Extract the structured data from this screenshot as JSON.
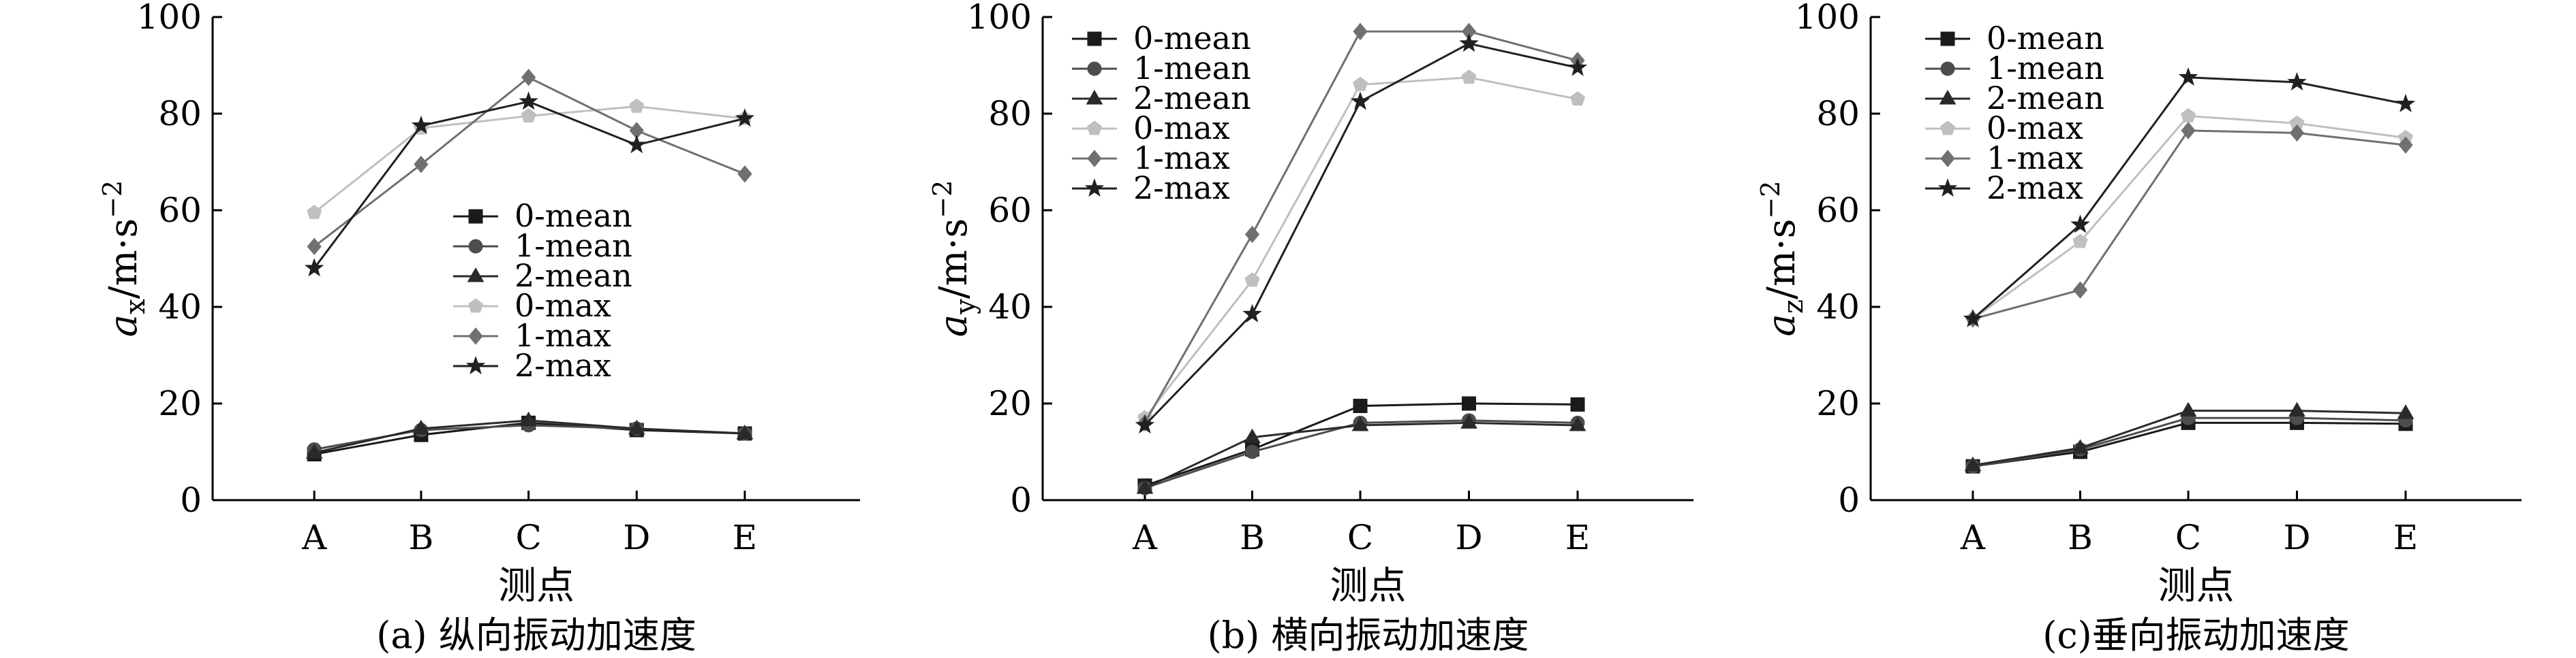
{
  "chart_data": [
    {
      "type": "line",
      "caption": "(a) 纵向振动加速度",
      "xlabel": "测点",
      "ylabel": {
        "base": "a",
        "sub": "x",
        "unit": "/m·s",
        "sup": "−2"
      },
      "categories": [
        "A",
        "B",
        "C",
        "D",
        "E"
      ],
      "ylim": [
        0,
        100
      ],
      "yticks": [
        "0",
        "20",
        "40",
        "60",
        "80",
        "100"
      ],
      "legend_position": "center",
      "series": [
        {
          "name": "0-mean",
          "values": [
            9.5,
            13.5,
            16,
            14.5,
            13.8
          ],
          "color": "#1a1a1a",
          "marker": "square"
        },
        {
          "name": "1-mean",
          "values": [
            10.5,
            14.5,
            15.5,
            14.8,
            13.8
          ],
          "color": "#4d4d4d",
          "marker": "circle"
        },
        {
          "name": "2-mean",
          "values": [
            9.8,
            14.8,
            16.5,
            14.8,
            13.8
          ],
          "color": "#2a2a2a",
          "marker": "triangle"
        },
        {
          "name": "0-max",
          "values": [
            59.5,
            77,
            79.5,
            81.5,
            79
          ],
          "color": "#bfbfbf",
          "marker": "pentagon"
        },
        {
          "name": "1-max",
          "values": [
            52.5,
            69.5,
            87.5,
            76.5,
            67.5
          ],
          "color": "#707070",
          "marker": "diamond"
        },
        {
          "name": "2-max",
          "values": [
            48,
            77.5,
            82.5,
            73.5,
            79
          ],
          "color": "#202020",
          "marker": "star"
        }
      ]
    },
    {
      "type": "line",
      "caption": "(b) 横向振动加速度",
      "xlabel": "测点",
      "ylabel": {
        "base": "a",
        "sub": "y",
        "unit": "/m·s",
        "sup": "−2"
      },
      "categories": [
        "A",
        "B",
        "C",
        "D",
        "E"
      ],
      "ylim": [
        0,
        100
      ],
      "yticks": [
        "0",
        "20",
        "40",
        "60",
        "80",
        "100"
      ],
      "legend_position": "top-left",
      "series": [
        {
          "name": "0-mean",
          "values": [
            3,
            10.5,
            19.5,
            20,
            19.8
          ],
          "color": "#1a1a1a",
          "marker": "square"
        },
        {
          "name": "1-mean",
          "values": [
            2.5,
            10,
            16,
            16.5,
            16
          ],
          "color": "#4d4d4d",
          "marker": "circle"
        },
        {
          "name": "2-mean",
          "values": [
            2.5,
            13,
            15.5,
            16,
            15.5
          ],
          "color": "#2a2a2a",
          "marker": "triangle"
        },
        {
          "name": "0-max",
          "values": [
            17,
            45.5,
            86,
            87.5,
            83
          ],
          "color": "#bfbfbf",
          "marker": "pentagon"
        },
        {
          "name": "1-max",
          "values": [
            16,
            55,
            97,
            97,
            91
          ],
          "color": "#707070",
          "marker": "diamond"
        },
        {
          "name": "2-max",
          "values": [
            15.5,
            38.5,
            82.5,
            94.5,
            89.5
          ],
          "color": "#202020",
          "marker": "star"
        }
      ]
    },
    {
      "type": "line",
      "caption": "(c)垂向振动加速度",
      "xlabel": "测点",
      "ylabel": {
        "base": "a",
        "sub": "z",
        "unit": "/m·s",
        "sup": "−2"
      },
      "categories": [
        "A",
        "B",
        "C",
        "D",
        "E"
      ],
      "ylim": [
        0,
        100
      ],
      "yticks": [
        "0",
        "20",
        "40",
        "60",
        "80",
        "100"
      ],
      "legend_position": "top-left",
      "series": [
        {
          "name": "0-mean",
          "values": [
            7,
            10,
            16,
            16,
            15.8
          ],
          "color": "#1a1a1a",
          "marker": "square"
        },
        {
          "name": "1-mean",
          "values": [
            7,
            10.5,
            17,
            17,
            16.5
          ],
          "color": "#4d4d4d",
          "marker": "circle"
        },
        {
          "name": "2-mean",
          "values": [
            7.2,
            10.8,
            18.5,
            18.5,
            18
          ],
          "color": "#2a2a2a",
          "marker": "triangle"
        },
        {
          "name": "0-max",
          "values": [
            37.5,
            53.5,
            79.5,
            78,
            75
          ],
          "color": "#bfbfbf",
          "marker": "pentagon"
        },
        {
          "name": "1-max",
          "values": [
            37.5,
            43.5,
            76.5,
            76,
            73.5
          ],
          "color": "#707070",
          "marker": "diamond"
        },
        {
          "name": "2-max",
          "values": [
            37.5,
            57,
            87.5,
            86.5,
            82
          ],
          "color": "#202020",
          "marker": "star"
        }
      ]
    }
  ]
}
